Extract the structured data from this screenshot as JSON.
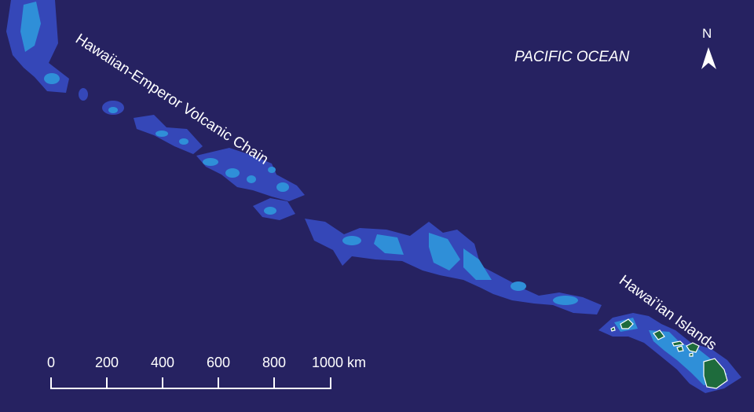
{
  "map": {
    "ocean_label": "PACIFIC OCEAN",
    "chain_label": "Hawaiian-Emperor Volcanic Chain",
    "islands_label": "Hawai’ian Islands",
    "north_label": "N",
    "north_icon": "north-arrow-icon",
    "colors": {
      "ocean": "#262261",
      "shallow": "#3547B8",
      "shallower": "#2F8FD8",
      "land": "#1E6B3C",
      "label": "#FFFFFF"
    }
  },
  "scale_bar": {
    "ticks": [
      "0",
      "200",
      "400",
      "600",
      "800"
    ],
    "last_tick": "1000 km"
  }
}
